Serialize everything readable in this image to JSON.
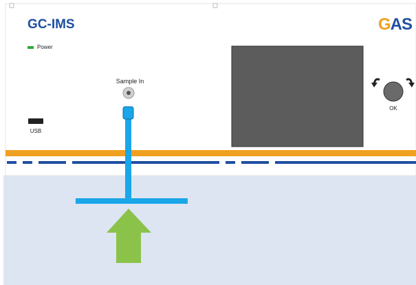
{
  "header": {
    "title": "GC-IMS",
    "logo": "GAS"
  },
  "labels": {
    "power": "Power",
    "sample_in": "Sample In",
    "usb": "USB",
    "ok": "OK"
  }
}
